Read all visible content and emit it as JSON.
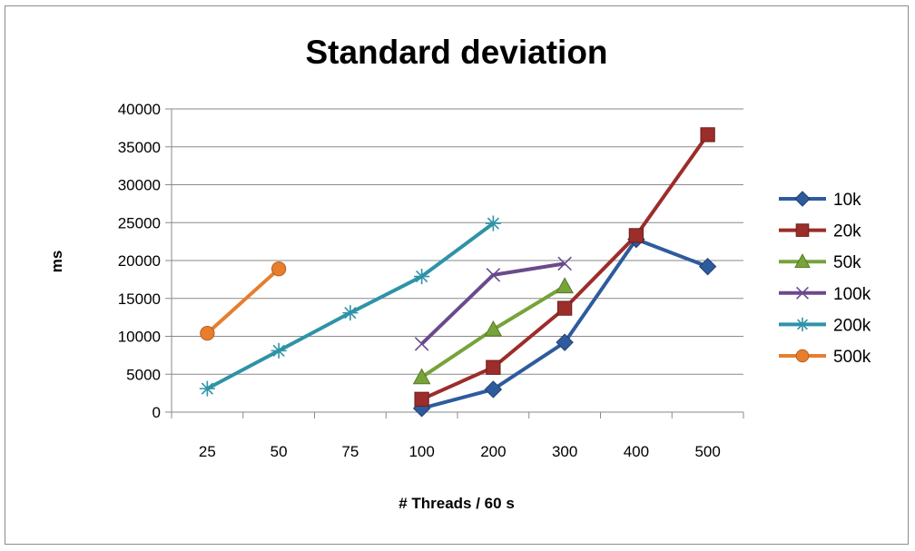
{
  "chart_data": {
    "type": "line",
    "title": "Standard deviation",
    "xlabel": "# Threads / 60 s",
    "ylabel": "ms",
    "categories": [
      "25",
      "50",
      "75",
      "100",
      "200",
      "300",
      "400",
      "500"
    ],
    "yticks": [
      "0",
      "5000",
      "10000",
      "15000",
      "20000",
      "25000",
      "30000",
      "35000",
      "40000"
    ],
    "ylim": [
      0,
      40000
    ],
    "grid": "horizontal",
    "legend_position": "right",
    "series": [
      {
        "name": "10k",
        "color": "#2E5B9E",
        "marker": "diamond",
        "values": [
          null,
          null,
          null,
          500,
          3000,
          9200,
          22800,
          19200
        ]
      },
      {
        "name": "20k",
        "color": "#9B2D2A",
        "marker": "square",
        "values": [
          null,
          null,
          null,
          1700,
          5900,
          13700,
          23300,
          36600
        ]
      },
      {
        "name": "50k",
        "color": "#77A33A",
        "marker": "triangle",
        "values": [
          null,
          null,
          null,
          4600,
          10900,
          16600,
          null,
          null
        ]
      },
      {
        "name": "100k",
        "color": "#6A4A8C",
        "marker": "x",
        "values": [
          null,
          null,
          null,
          9000,
          18100,
          19600,
          null,
          null
        ]
      },
      {
        "name": "200k",
        "color": "#2E93A8",
        "marker": "star",
        "values": [
          3100,
          8100,
          13100,
          17900,
          24900,
          null,
          null,
          null
        ]
      },
      {
        "name": "500k",
        "color": "#E67E2E",
        "marker": "circle",
        "values": [
          10400,
          18900,
          null,
          null,
          null,
          null,
          null,
          null
        ]
      }
    ]
  }
}
